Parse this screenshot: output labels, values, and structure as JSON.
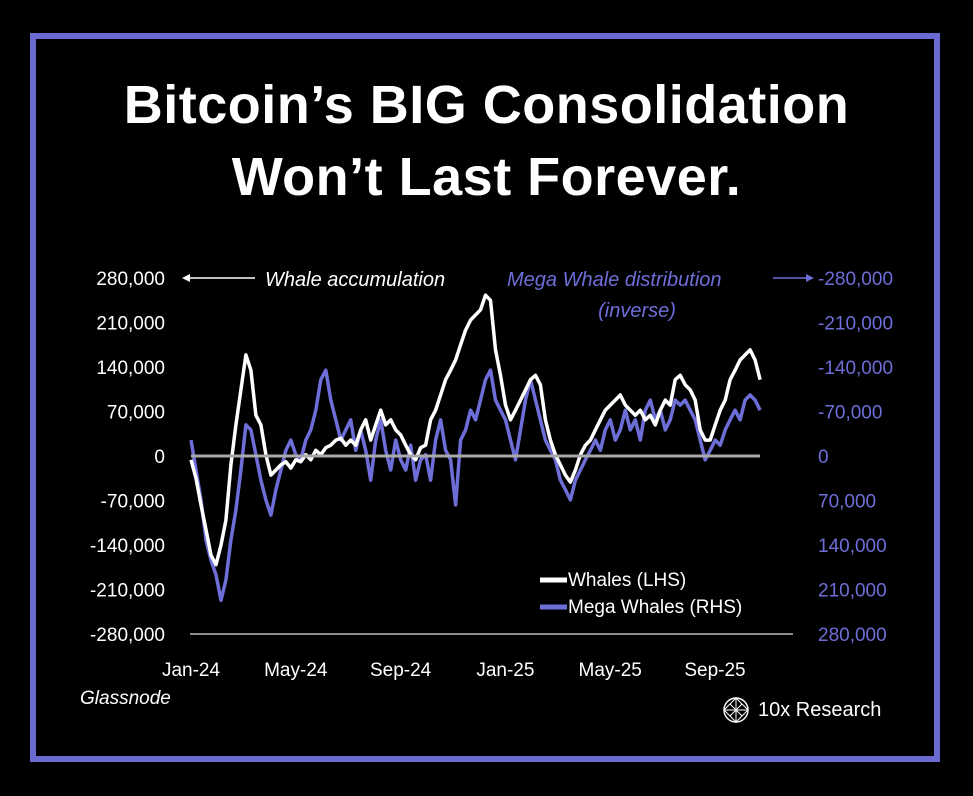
{
  "header": {
    "title_line1": "Bitcoin’s BIG Consolidation",
    "title_line2": "Won’t Last Forever."
  },
  "colors": {
    "frame": "#6a6ad0",
    "whales": "#ffffff",
    "mega_whales": "#6e6ed8",
    "zero_line": "#a8a8a8"
  },
  "footer": {
    "source": "Glassnode",
    "brand": "10x Research",
    "brand_icon": "globe-lattice-icon"
  },
  "chart_data": {
    "type": "line",
    "title": "Bitcoin’s BIG Consolidation Won’t Last Forever.",
    "annotations": {
      "left": "Whale accumulation",
      "right_line1": "Mega Whale distribution",
      "right_line2": "(inverse)"
    },
    "x_start": "2024-01-01",
    "x_step_days": 5.8,
    "value_scale": 1000,
    "x_ticks": [
      "Jan-24",
      "May-24",
      "Sep-24",
      "Jan-25",
      "May-25",
      "Sep-25"
    ],
    "y_left": {
      "label": "Whales (LHS)",
      "ylim": [
        -280000,
        280000
      ],
      "ticks": [
        "280,000",
        "210,000",
        "140,000",
        "70,000",
        "0",
        "-70,000",
        "-140,000",
        "-210,000",
        "-280,000"
      ]
    },
    "y_right": {
      "label": "Mega Whales (RHS)",
      "inverted": true,
      "ylim": [
        -280000,
        280000
      ],
      "ticks": [
        "-280,000",
        "-210,000",
        "-140,000",
        "-70,000",
        "0",
        "70,000",
        "140,000",
        "210,000",
        "280,000"
      ]
    },
    "legend": [
      "Whales (LHS)",
      "Mega Whales (RHS)"
    ],
    "legend_position": "bottom-right",
    "series": [
      {
        "name": "Whales (LHS)",
        "axis": "left",
        "values": [
          -6,
          -35,
          -77,
          -116,
          -156,
          -171,
          -140,
          -101,
          -14,
          49,
          104,
          159,
          135,
          64,
          49,
          2,
          -30,
          -22,
          -14,
          -9,
          -19,
          -6,
          -9,
          2,
          -6,
          9,
          2,
          13,
          17,
          25,
          28,
          17,
          25,
          17,
          41,
          57,
          25,
          49,
          72,
          49,
          57,
          41,
          33,
          17,
          2,
          -6,
          13,
          17,
          57,
          72,
          96,
          120,
          135,
          151,
          175,
          198,
          214,
          222,
          230,
          253,
          245,
          167,
          127,
          80,
          57,
          72,
          88,
          104,
          120,
          127,
          112,
          57,
          25,
          2,
          -14,
          -30,
          -41,
          -22,
          2,
          17,
          25,
          41,
          57,
          72,
          80,
          88,
          96,
          80,
          72,
          64,
          72,
          57,
          64,
          49,
          72,
          88,
          80,
          120,
          127,
          112,
          104,
          88,
          41,
          25,
          25,
          49,
          72,
          88,
          120,
          135,
          151,
          159,
          167,
          151,
          120
        ]
      },
      {
        "name": "Mega Whales (RHS)",
        "axis": "right",
        "values": [
          -25,
          22,
          69,
          132,
          164,
          187,
          227,
          195,
          132,
          85,
          22,
          -49,
          -41,
          -2,
          38,
          69,
          93,
          53,
          22,
          -9,
          -25,
          -2,
          6,
          -25,
          -41,
          -72,
          -120,
          -135,
          -88,
          -57,
          -25,
          -41,
          -57,
          -9,
          -41,
          -9,
          38,
          -25,
          -57,
          -9,
          22,
          -25,
          6,
          22,
          -17,
          38,
          6,
          -2,
          38,
          -25,
          -57,
          -9,
          6,
          77,
          -25,
          -41,
          -72,
          -57,
          -88,
          -120,
          -135,
          -88,
          -72,
          -57,
          -25,
          6,
          -41,
          -88,
          -120,
          -88,
          -57,
          -25,
          -9,
          6,
          38,
          53,
          69,
          38,
          22,
          6,
          -9,
          -25,
          -9,
          -41,
          -57,
          -25,
          -41,
          -72,
          -41,
          -57,
          -25,
          -72,
          -88,
          -57,
          -72,
          -41,
          -57,
          -88,
          -80,
          -88,
          -72,
          -57,
          -25,
          6,
          -9,
          -25,
          -17,
          -41,
          -57,
          -72,
          -57,
          -88,
          -96,
          -88,
          -72
        ]
      }
    ]
  }
}
